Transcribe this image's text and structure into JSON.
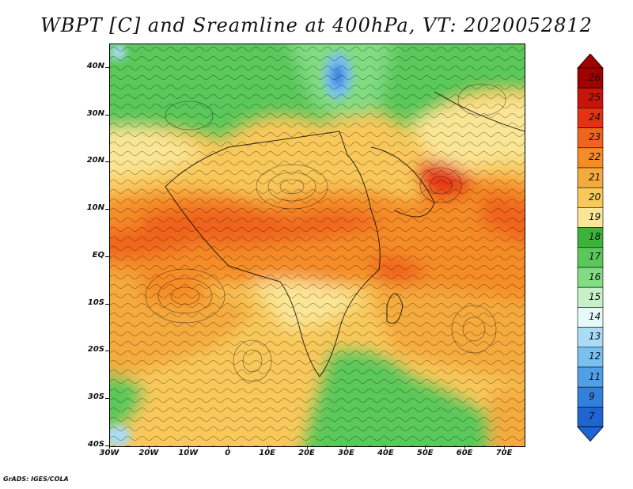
{
  "title": "WBPT [C] and Sreamline at 400hPa, VT: 2020052812",
  "footer": "GrADS: IGES/COLA",
  "axes": {
    "lat_labels": [
      "40N",
      "30N",
      "20N",
      "10N",
      "EQ",
      "10S",
      "20S",
      "30S",
      "40S"
    ],
    "lat_values": [
      40,
      30,
      20,
      10,
      0,
      -10,
      -20,
      -30,
      -40
    ],
    "lon_labels": [
      "30W",
      "20W",
      "10W",
      "0",
      "10E",
      "20E",
      "30E",
      "40E",
      "50E",
      "60E",
      "70E"
    ],
    "lon_values": [
      -30,
      -20,
      -10,
      0,
      10,
      20,
      30,
      40,
      50,
      60,
      70
    ],
    "lat_range": [
      -40,
      45
    ],
    "lon_range": [
      -30,
      75
    ]
  },
  "colorbar": {
    "labels": [
      "26",
      "25",
      "24",
      "23",
      "22",
      "21",
      "20",
      "19",
      "18",
      "17",
      "16",
      "15",
      "14",
      "13",
      "12",
      "11",
      "9",
      "7"
    ],
    "colors": [
      "#a00000",
      "#c8140a",
      "#e63214",
      "#f0641e",
      "#f58c28",
      "#f5aa3c",
      "#f8c85a",
      "#fbe696",
      "#3cb43c",
      "#5ac85a",
      "#82dc82",
      "#c8f0c8",
      "#e6fafa",
      "#aadcf5",
      "#78c0f0",
      "#50a0e6",
      "#3280dc",
      "#1e64d2"
    ]
  }
}
